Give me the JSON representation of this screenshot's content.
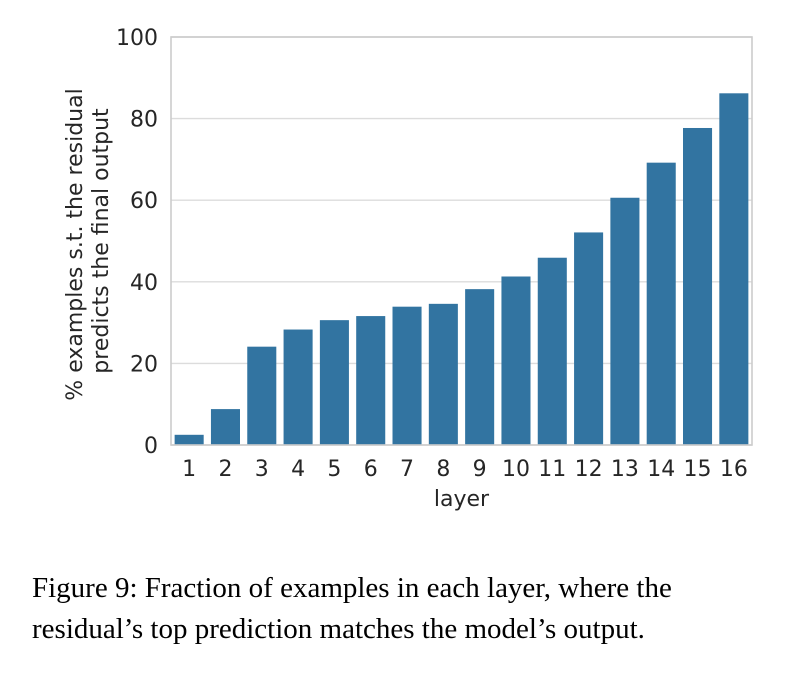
{
  "chart_data": {
    "type": "bar",
    "xlabel": "layer",
    "ylabel_lines": [
      "% examples s.t. the residual",
      "predicts the final output"
    ],
    "categories": [
      "1",
      "2",
      "3",
      "4",
      "5",
      "6",
      "7",
      "8",
      "9",
      "10",
      "11",
      "12",
      "13",
      "14",
      "15",
      "16"
    ],
    "values": [
      2.5,
      8.8,
      24.1,
      28.3,
      30.6,
      31.6,
      33.9,
      34.6,
      38.2,
      41.3,
      45.9,
      52.1,
      60.6,
      69.2,
      77.7,
      86.2
    ],
    "ylim": [
      0,
      100
    ],
    "yticks": [
      0,
      20,
      40,
      60,
      80,
      100
    ],
    "grid": "horizontal",
    "bar_color": "#3274a1",
    "grid_color": "#dcdcdc",
    "frame_color": "#cccccc"
  },
  "caption": {
    "line1": "Figure 9: Fraction of examples in each layer, where the",
    "line2": "residual’s top prediction matches the model’s output."
  }
}
